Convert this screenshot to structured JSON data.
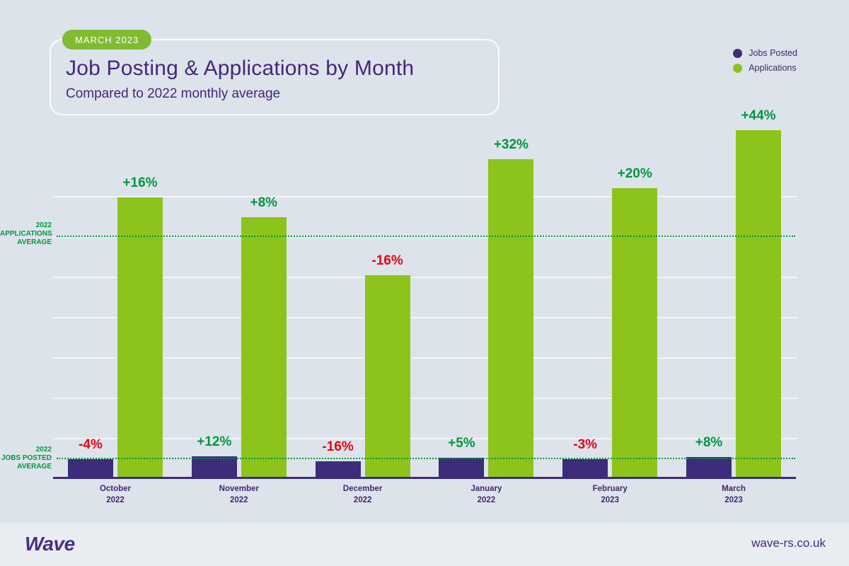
{
  "page": {
    "badge": "MARCH 2023",
    "title": "Job Posting & Applications by Month",
    "subtitle": "Compared to 2022 monthly average"
  },
  "legend": {
    "items": [
      {
        "label": "Jobs Posted",
        "color": "#3d2c79"
      },
      {
        "label": "Applications",
        "color": "#8cc41c"
      }
    ]
  },
  "reference_labels": {
    "applications": [
      "2022",
      "APPLICATIONS",
      "AVERAGE"
    ],
    "jobs": [
      "2022",
      "JOBS POSTED",
      "AVERAGE"
    ]
  },
  "footer": {
    "logo": "Wave",
    "website": "wave-rs.co.uk"
  },
  "chart_data": {
    "type": "bar",
    "title": "Job Posting & Applications by Month",
    "subtitle": "Compared to 2022 monthly average",
    "period_badge": "MARCH 2023",
    "unit": "percent change vs 2022 monthly average",
    "categories": [
      {
        "month": "October",
        "year": "2022"
      },
      {
        "month": "November",
        "year": "2022"
      },
      {
        "month": "December",
        "year": "2022"
      },
      {
        "month": "January",
        "year": "2022"
      },
      {
        "month": "February",
        "year": "2023"
      },
      {
        "month": "March",
        "year": "2023"
      }
    ],
    "series": [
      {
        "name": "Jobs Posted",
        "color": "#3d2c79",
        "values": [
          -4,
          12,
          -16,
          5,
          -3,
          8
        ],
        "labels": [
          "-4%",
          "+12%",
          "-16%",
          "+5%",
          "-3%",
          "+8%"
        ]
      },
      {
        "name": "Applications",
        "color": "#8cc41c",
        "values": [
          16,
          8,
          -16,
          32,
          20,
          44
        ],
        "labels": [
          "+16%",
          "+8%",
          "-16%",
          "+32%",
          "+20%",
          "+44%"
        ]
      }
    ],
    "reference_lines": [
      {
        "series": "Applications",
        "label_lines": [
          "2022",
          "APPLICATIONS",
          "AVERAGE"
        ],
        "value": 0
      },
      {
        "series": "Jobs Posted",
        "label_lines": [
          "2022",
          "JOBS POSTED",
          "AVERAGE"
        ],
        "value": 0
      }
    ],
    "label_colors": {
      "positive": "#009640",
      "negative": "#e30613"
    },
    "legend_position": "top-right",
    "grid": true
  }
}
